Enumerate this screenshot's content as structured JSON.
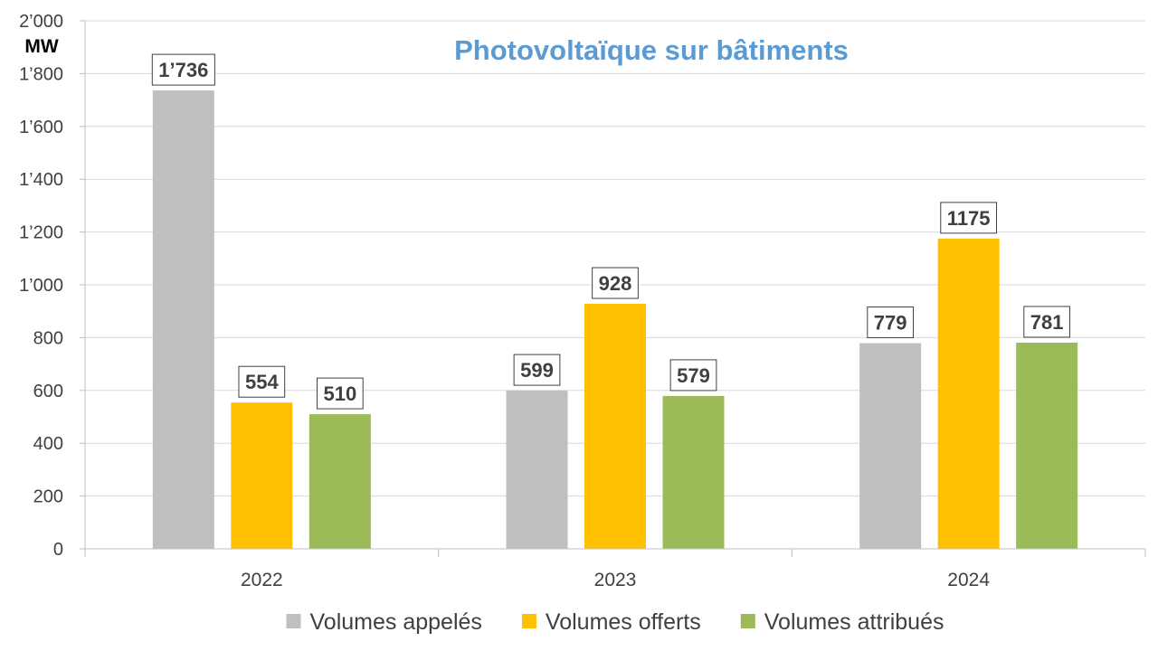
{
  "chart_data": {
    "type": "bar",
    "title": "Photovoltaïque sur bâtiments",
    "ylabel": "MW",
    "categories": [
      "2022",
      "2023",
      "2024"
    ],
    "series": [
      {
        "name": "Volumes appelés",
        "color": "#BFBFBF",
        "values": [
          1736,
          599,
          779
        ],
        "labels": [
          "1’736",
          "599",
          "779"
        ]
      },
      {
        "name": "Volumes offerts",
        "color": "#FFC000",
        "values": [
          554,
          928,
          1175
        ],
        "labels": [
          "554",
          "928",
          "1175"
        ]
      },
      {
        "name": "Volumes attribués",
        "color": "#9BBB59",
        "values": [
          510,
          579,
          781
        ],
        "labels": [
          "510",
          "579",
          "781"
        ]
      }
    ],
    "ylim": [
      0,
      2000
    ],
    "yticks": [
      0,
      200,
      400,
      600,
      800,
      1000,
      1200,
      1400,
      1600,
      1800,
      2000
    ],
    "ytick_labels": [
      "0",
      "200",
      "400",
      "600",
      "800",
      "1’000",
      "1’200",
      "1’400",
      "1’600",
      "1’800",
      "2’000"
    ],
    "grid": true,
    "legend_position": "bottom",
    "title_color": "#5B9BD5"
  }
}
